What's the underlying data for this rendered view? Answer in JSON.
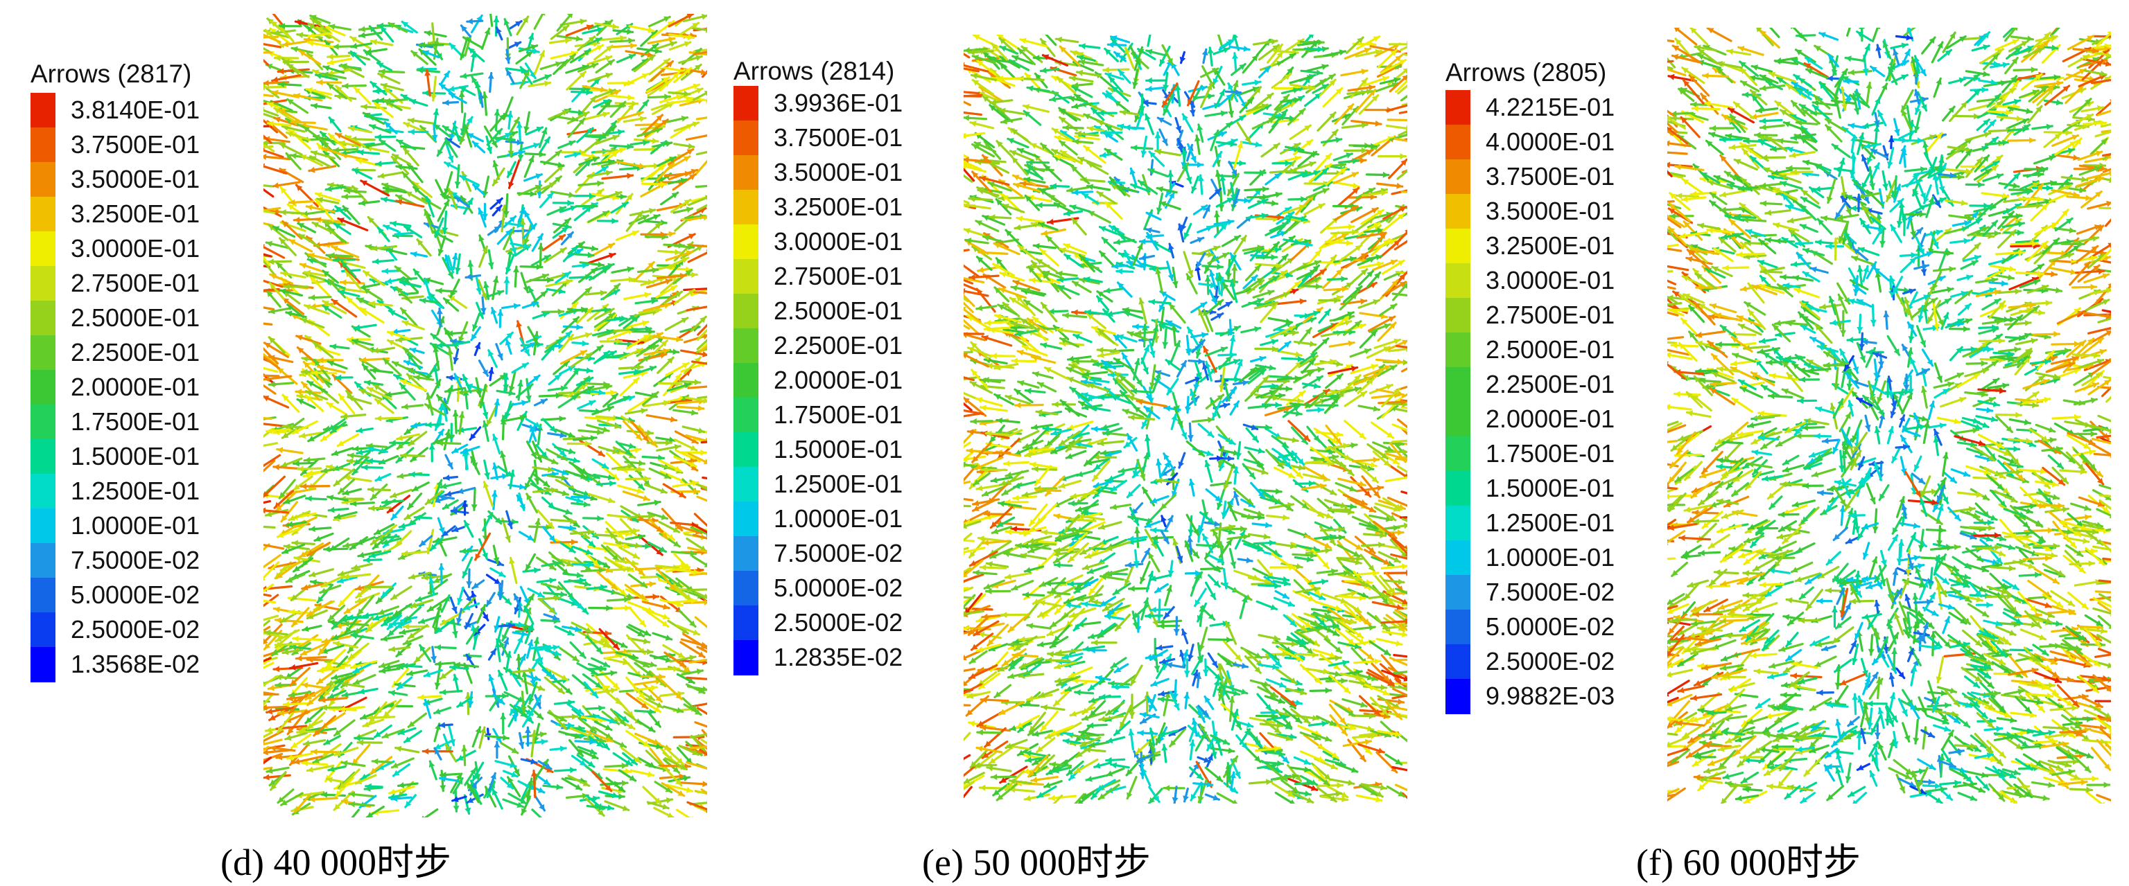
{
  "colormap": [
    "#0000ff",
    "#0a3cf0",
    "#1466e6",
    "#1e96e6",
    "#00c8e8",
    "#00dcc8",
    "#00d890",
    "#22d05a",
    "#3cc834",
    "#64cc28",
    "#96d21c",
    "#c8e012",
    "#f0ee00",
    "#f0c000",
    "#f08a00",
    "#ee5a00",
    "#e62200"
  ],
  "panels": [
    {
      "legend": {
        "title": "Arrows (2817)",
        "labels": [
          "3.8140E-01",
          "3.7500E-01",
          "3.5000E-01",
          "3.2500E-01",
          "3.0000E-01",
          "2.7500E-01",
          "2.5000E-01",
          "2.2500E-01",
          "2.0000E-01",
          "1.7500E-01",
          "1.5000E-01",
          "1.2500E-01",
          "1.0000E-01",
          "7.5000E-02",
          "5.0000E-02",
          "2.5000E-02",
          "1.3568E-02"
        ]
      },
      "caption": "(d) 40 000时步"
    },
    {
      "legend": {
        "title": "Arrows (2814)",
        "labels": [
          "3.9936E-01",
          "3.7500E-01",
          "3.5000E-01",
          "3.2500E-01",
          "3.0000E-01",
          "2.7500E-01",
          "2.5000E-01",
          "2.2500E-01",
          "2.0000E-01",
          "1.7500E-01",
          "1.5000E-01",
          "1.2500E-01",
          "1.0000E-01",
          "7.5000E-02",
          "5.0000E-02",
          "2.5000E-02",
          "1.2835E-02"
        ]
      },
      "caption": "(e) 50 000时步"
    },
    {
      "legend": {
        "title": "Arrows (2805)",
        "labels": [
          "4.2215E-01",
          "4.0000E-01",
          "3.7500E-01",
          "3.5000E-01",
          "3.2500E-01",
          "3.0000E-01",
          "2.7500E-01",
          "2.5000E-01",
          "2.2500E-01",
          "2.0000E-01",
          "1.7500E-01",
          "1.5000E-01",
          "1.2500E-01",
          "1.0000E-01",
          "7.5000E-02",
          "5.0000E-02",
          "2.5000E-02",
          "9.9882E-03"
        ]
      },
      "caption": "(f) 60 000时步"
    }
  ]
}
